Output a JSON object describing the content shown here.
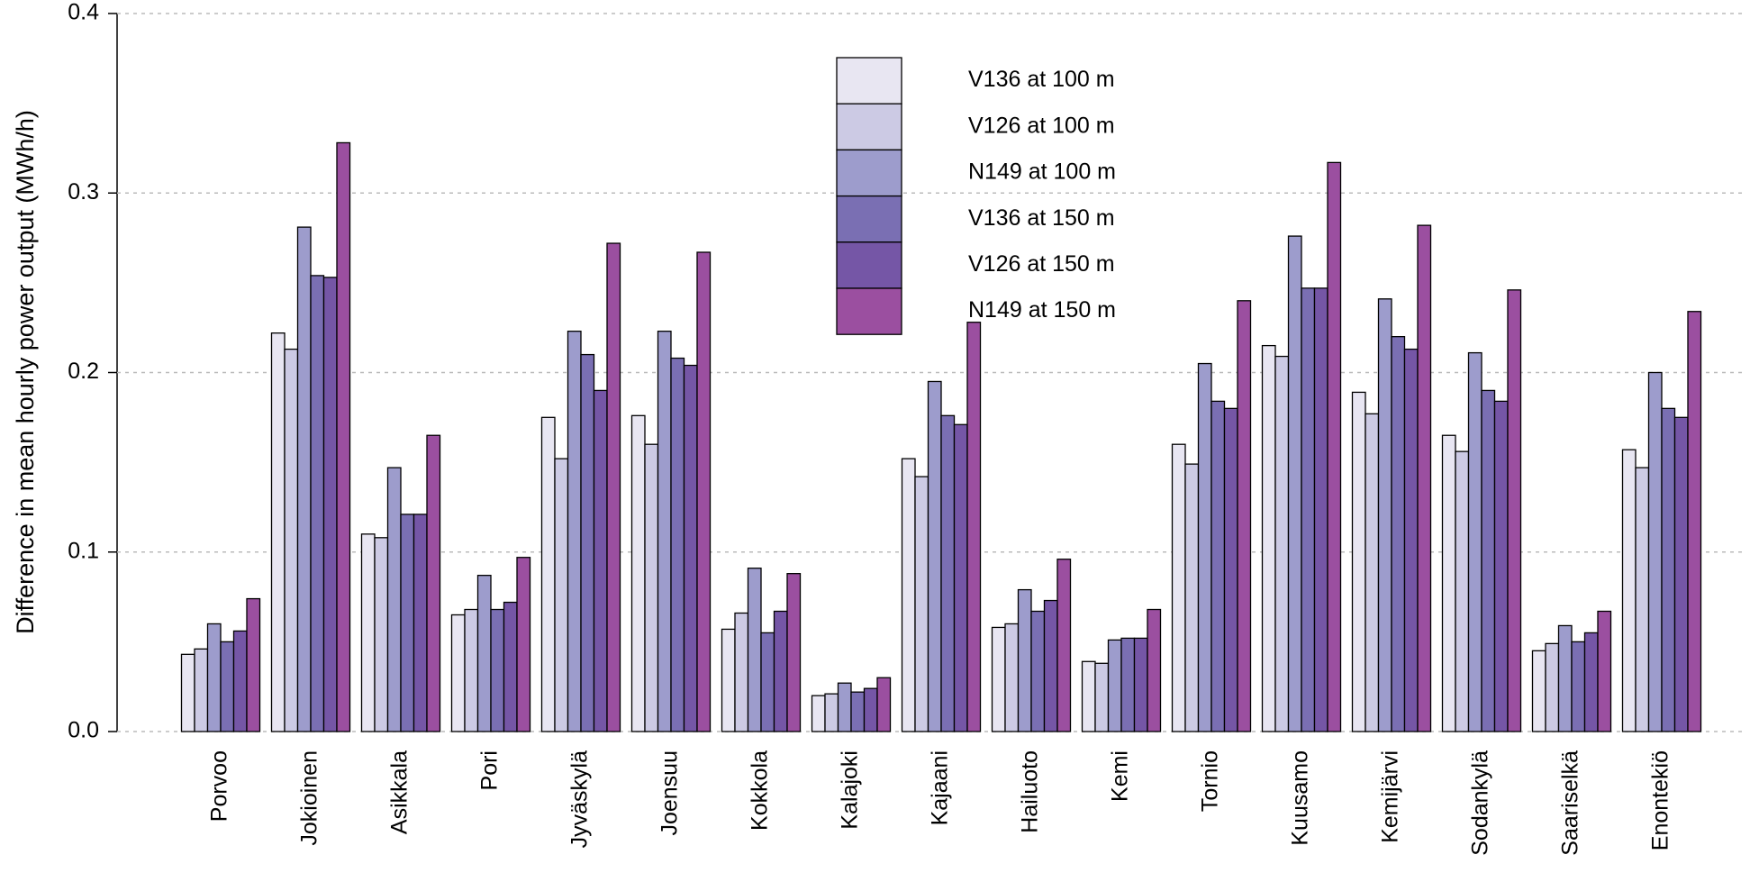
{
  "chart_data": {
    "type": "bar",
    "y_label": "Difference in mean hourly power output (MWh/h)",
    "categories": [
      "Porvoo",
      "Jokioinen",
      "Asikkala",
      "Pori",
      "Jyväskylä",
      "Joensuu",
      "Kokkola",
      "Kalajoki",
      "Kajaani",
      "Hailuoto",
      "Kemi",
      "Tornio",
      "Kuusamo",
      "Kemijärvi",
      "Sodankylä",
      "Saariselkä",
      "Enontekiö"
    ],
    "series": [
      {
        "name": "V136 at 100 m",
        "color": "#e8e6f2",
        "values": [
          0.043,
          0.222,
          0.11,
          0.065,
          0.175,
          0.176,
          0.057,
          0.02,
          0.152,
          0.058,
          0.039,
          0.16,
          0.215,
          0.189,
          0.165,
          0.045,
          0.157
        ]
      },
      {
        "name": "V126 at 100 m",
        "color": "#cccae4",
        "values": [
          0.046,
          0.213,
          0.108,
          0.068,
          0.152,
          0.16,
          0.066,
          0.021,
          0.142,
          0.06,
          0.038,
          0.149,
          0.209,
          0.177,
          0.156,
          0.049,
          0.147
        ]
      },
      {
        "name": "N149 at 100 m",
        "color": "#9d9ccc",
        "values": [
          0.06,
          0.281,
          0.147,
          0.087,
          0.223,
          0.223,
          0.091,
          0.027,
          0.195,
          0.079,
          0.051,
          0.205,
          0.276,
          0.241,
          0.211,
          0.059,
          0.2
        ]
      },
      {
        "name": "V136 at 150 m",
        "color": "#7a6fb3",
        "values": [
          0.05,
          0.254,
          0.121,
          0.068,
          0.21,
          0.208,
          0.055,
          0.022,
          0.176,
          0.067,
          0.052,
          0.184,
          0.247,
          0.22,
          0.19,
          0.05,
          0.18
        ]
      },
      {
        "name": "V126 at 150 m",
        "color": "#7556a6",
        "values": [
          0.056,
          0.253,
          0.121,
          0.072,
          0.19,
          0.204,
          0.067,
          0.024,
          0.171,
          0.073,
          0.052,
          0.18,
          0.247,
          0.213,
          0.184,
          0.055,
          0.175
        ]
      },
      {
        "name": "N149 at 150 m",
        "color": "#9b4fa0",
        "values": [
          0.074,
          0.328,
          0.165,
          0.097,
          0.272,
          0.267,
          0.088,
          0.03,
          0.228,
          0.096,
          0.068,
          0.24,
          0.317,
          0.282,
          0.246,
          0.067,
          0.234
        ]
      }
    ],
    "ylim": [
      0,
      0.4
    ],
    "yticks": [
      {
        "value": 0,
        "label": "0.0"
      },
      0.1,
      0.2,
      0.3,
      0.4
    ],
    "grid": true
  }
}
